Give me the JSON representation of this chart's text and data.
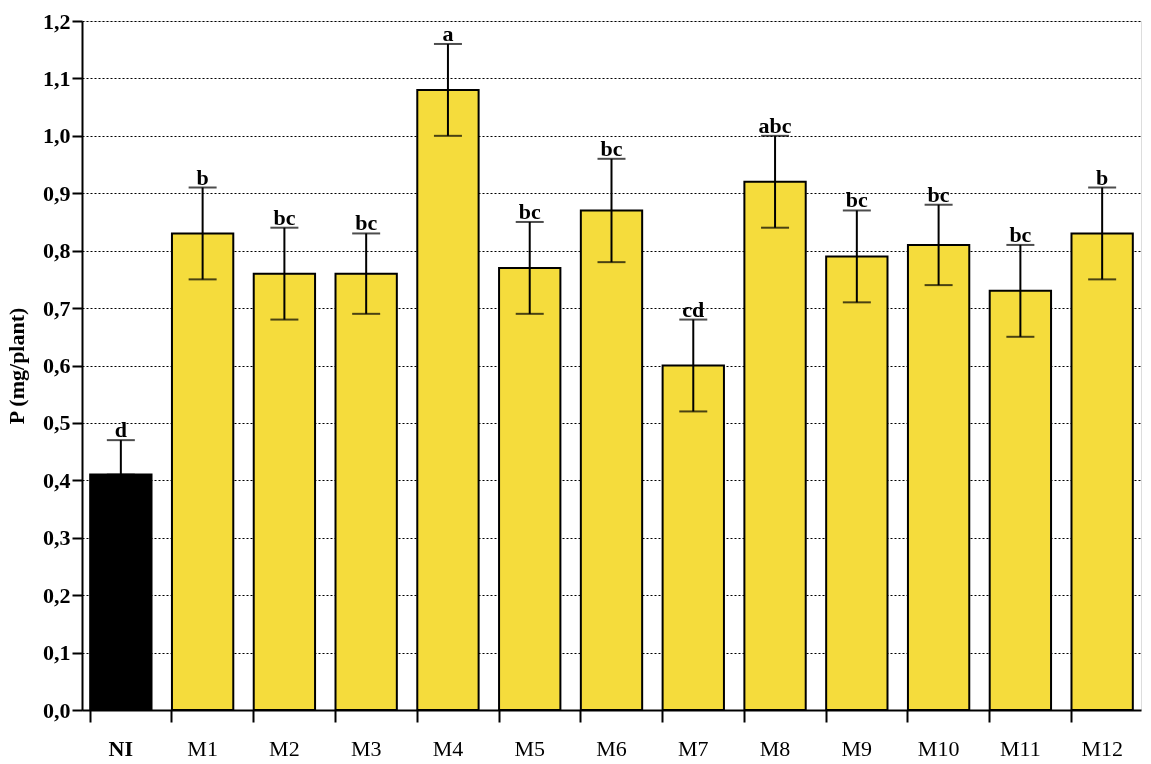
{
  "chart_data": {
    "type": "bar",
    "ylabel": "P (mg/plant)",
    "categories": [
      "NI",
      "M1",
      "M2",
      "M3",
      "M4",
      "M5",
      "M6",
      "M7",
      "M8",
      "M9",
      "M10",
      "M11",
      "M12"
    ],
    "values": [
      0.41,
      0.83,
      0.76,
      0.76,
      1.08,
      0.77,
      0.87,
      0.6,
      0.92,
      0.79,
      0.81,
      0.73,
      0.83
    ],
    "colors": [
      "#000000",
      "#f5dc3c",
      "#f5dc3c",
      "#f5dc3c",
      "#f5dc3c",
      "#f5dc3c",
      "#f5dc3c",
      "#f5dc3c",
      "#f5dc3c",
      "#f5dc3c",
      "#f5dc3c",
      "#f5dc3c",
      "#f5dc3c"
    ],
    "errors": [
      [
        0.41,
        0.47
      ],
      [
        0.75,
        0.91
      ],
      [
        0.68,
        0.84
      ],
      [
        0.69,
        0.83
      ],
      [
        1.0,
        1.16
      ],
      [
        0.69,
        0.85
      ],
      [
        0.78,
        0.96
      ],
      [
        0.52,
        0.68
      ],
      [
        0.84,
        1.0
      ],
      [
        0.71,
        0.87
      ],
      [
        0.74,
        0.88
      ],
      [
        0.65,
        0.81
      ],
      [
        0.75,
        0.91
      ]
    ],
    "ylim": [
      0,
      1.2
    ],
    "yticks": [
      {
        "value": 0,
        "label": "0,0"
      },
      {
        "value": 0.1,
        "label": "0,1"
      },
      {
        "value": 0.2,
        "label": "0,2"
      },
      {
        "value": 0.3,
        "label": "0,3"
      },
      {
        "value": 0.4,
        "label": "0,4"
      },
      {
        "value": 0.5,
        "label": "0,5"
      },
      {
        "value": 0.6,
        "label": "0,6"
      },
      {
        "value": 0.7,
        "label": "0,7"
      },
      {
        "value": 0.8,
        "label": "0,8"
      },
      {
        "value": 0.9,
        "label": "0,9"
      },
      {
        "value": 1.0,
        "label": "1,0"
      },
      {
        "value": 1.1,
        "label": "1,1"
      },
      {
        "value": 1.2,
        "label": "1,2"
      }
    ],
    "grid": "y",
    "annotations": [
      {
        "text": "d",
        "x": "NI",
        "y": 0.47
      },
      {
        "text": "b",
        "x": "M1",
        "y": 0.91
      },
      {
        "text": "bc",
        "x": "M2",
        "y": 0.84
      },
      {
        "text": "bc",
        "x": "M3",
        "y": 0.83
      },
      {
        "text": "a",
        "x": "M4",
        "y": 1.16
      },
      {
        "text": "bc",
        "x": "M5",
        "y": 0.85
      },
      {
        "text": "bc",
        "x": "M6",
        "y": 0.96
      },
      {
        "text": "cd",
        "x": "M7",
        "y": 0.68
      },
      {
        "text": "abc",
        "x": "M8",
        "y": 1.0
      },
      {
        "text": "bc",
        "x": "M9",
        "y": 0.87
      },
      {
        "text": "bc",
        "x": "M10",
        "y": 0.88
      },
      {
        "text": "bc",
        "x": "M11",
        "y": 0.81
      },
      {
        "text": "b",
        "x": "M12",
        "y": 0.91
      }
    ]
  }
}
